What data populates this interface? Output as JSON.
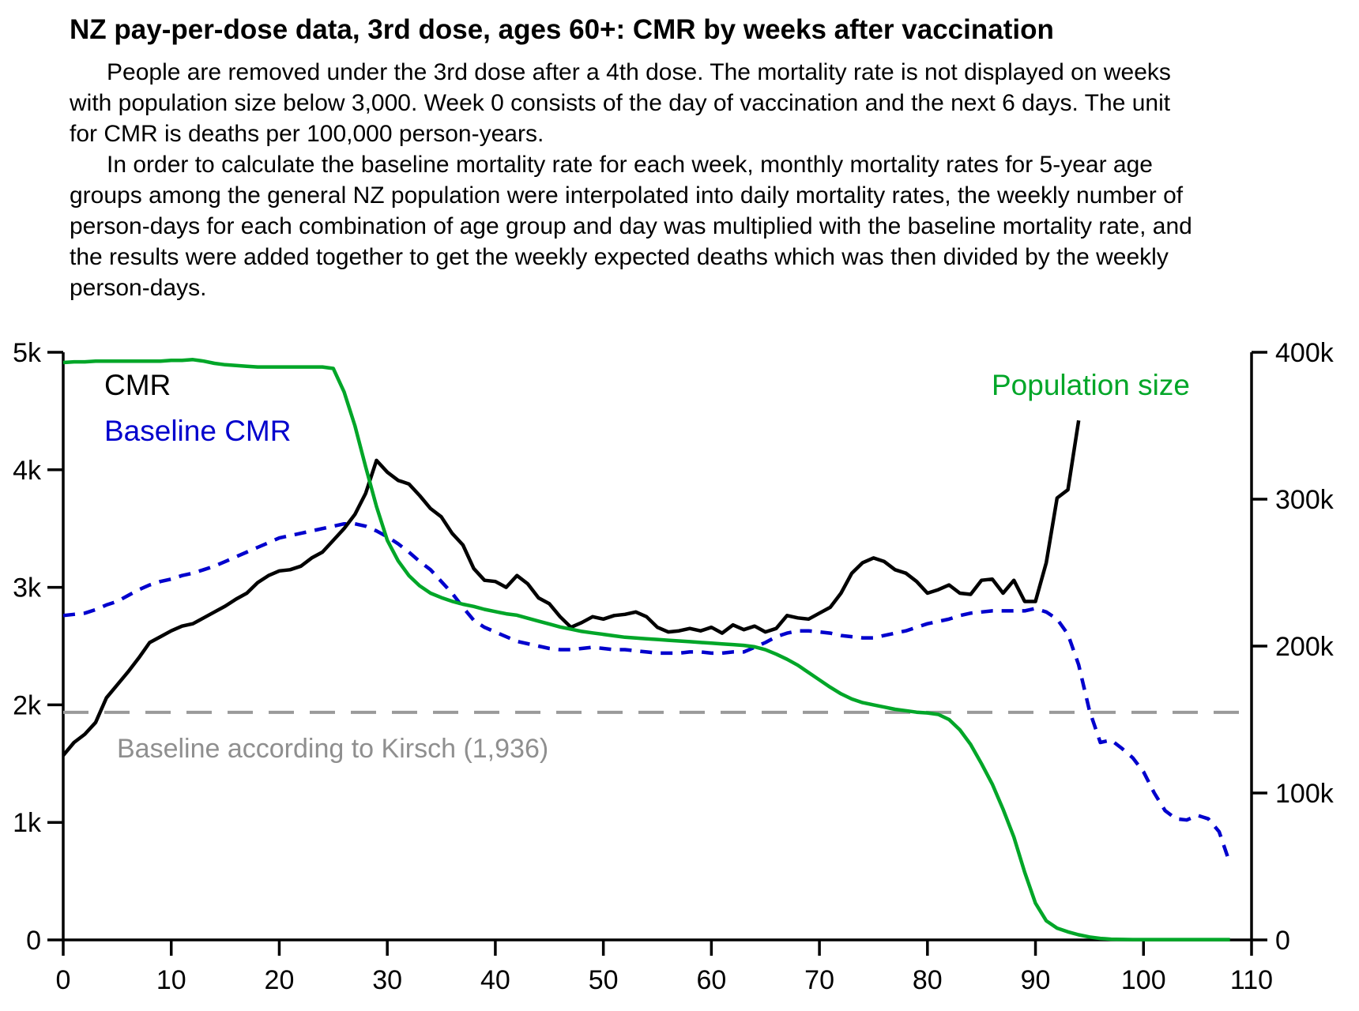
{
  "title": "NZ pay-per-dose data, 3rd dose, ages 60+: CMR by weeks after vaccination",
  "description": {
    "para1": "People are removed under the 3rd dose after a 4th dose. The mortality rate is not displayed on weeks with population size below 3,000. Week 0 consists of the day of vaccination and the next 6 days. The unit for CMR is deaths per 100,000 person-years.",
    "para2": "In order to calculate the baseline mortality rate for each week, monthly mortality rates for 5-year age groups among the general NZ population were interpolated into daily mortality rates, the weekly number of person-days for each combination of age group and day was multiplied with the baseline mortality rate, and the results were added together to get the weekly expected deaths which was then divided by the weekly person-days."
  },
  "chart_data": {
    "type": "line",
    "title": "NZ pay-per-dose data, 3rd dose, ages 60+: CMR by weeks after vaccination",
    "xlabel": "",
    "ylabel": "",
    "xlim": [
      0,
      110
    ],
    "grid": false,
    "x_ticks": [
      {
        "v": 0,
        "label": "0"
      },
      {
        "v": 10,
        "label": "10"
      },
      {
        "v": 20,
        "label": "20"
      },
      {
        "v": 30,
        "label": "30"
      },
      {
        "v": 40,
        "label": "40"
      },
      {
        "v": 50,
        "label": "50"
      },
      {
        "v": 60,
        "label": "60"
      },
      {
        "v": 70,
        "label": "70"
      },
      {
        "v": 80,
        "label": "80"
      },
      {
        "v": 90,
        "label": "90"
      },
      {
        "v": 100,
        "label": "100"
      },
      {
        "v": 110,
        "label": "110"
      }
    ],
    "left_axis": {
      "max": 5000,
      "ticks": [
        {
          "v": 0,
          "label": "0"
        },
        {
          "v": 1000,
          "label": "1k"
        },
        {
          "v": 2000,
          "label": "2k"
        },
        {
          "v": 3000,
          "label": "3k"
        },
        {
          "v": 4000,
          "label": "4k"
        },
        {
          "v": 5000,
          "label": "5k"
        }
      ]
    },
    "right_axis": {
      "max": 400000,
      "ticks": [
        {
          "v": 0,
          "label": "0"
        },
        {
          "v": 100000,
          "label": "100k"
        },
        {
          "v": 200000,
          "label": "200k"
        },
        {
          "v": 300000,
          "label": "300k"
        },
        {
          "v": 400000,
          "label": "400k"
        }
      ]
    },
    "legend": [
      {
        "label": "CMR",
        "color": "#000000"
      },
      {
        "label": "Baseline CMR",
        "color": "#0000cd"
      },
      {
        "label": "Population size",
        "color": "#00a628"
      }
    ],
    "baseline": {
      "label": "Baseline according to Kirsch (1,936)",
      "value": 1936,
      "line_color": "#9a9a9a",
      "label_color": "#8f8f8f"
    },
    "series": [
      {
        "name": "CMR",
        "axis": "left",
        "style": "solid",
        "color": "#000000",
        "z": 2,
        "x_start": 0,
        "x_step": 1,
        "values": [
          1570,
          1680,
          1750,
          1850,
          2060,
          2170,
          2280,
          2400,
          2530,
          2580,
          2630,
          2670,
          2690,
          2740,
          2790,
          2840,
          2900,
          2950,
          3040,
          3100,
          3140,
          3150,
          3180,
          3250,
          3300,
          3400,
          3500,
          3620,
          3800,
          4080,
          3980,
          3910,
          3880,
          3780,
          3670,
          3600,
          3460,
          3360,
          3160,
          3060,
          3050,
          3000,
          3100,
          3030,
          2910,
          2860,
          2750,
          2660,
          2700,
          2750,
          2730,
          2760,
          2770,
          2790,
          2750,
          2660,
          2620,
          2630,
          2650,
          2630,
          2660,
          2610,
          2680,
          2640,
          2670,
          2620,
          2650,
          2760,
          2740,
          2730,
          2780,
          2830,
          2950,
          3120,
          3210,
          3250,
          3220,
          3150,
          3120,
          3050,
          2950,
          2980,
          3020,
          2950,
          2940,
          3060,
          3070,
          2950,
          3060,
          2880,
          2880,
          3210,
          3760,
          3830,
          4420
        ]
      },
      {
        "name": "Baseline CMR",
        "axis": "left",
        "style": "dashed",
        "color": "#0000cd",
        "z": 1,
        "x_start": 0,
        "x_step": 1,
        "values": [
          2760,
          2770,
          2780,
          2810,
          2850,
          2880,
          2930,
          2980,
          3020,
          3050,
          3070,
          3100,
          3120,
          3150,
          3180,
          3220,
          3260,
          3300,
          3340,
          3380,
          3420,
          3440,
          3460,
          3480,
          3500,
          3520,
          3540,
          3540,
          3520,
          3480,
          3430,
          3370,
          3300,
          3220,
          3150,
          3050,
          2950,
          2830,
          2720,
          2660,
          2620,
          2580,
          2540,
          2520,
          2500,
          2480,
          2470,
          2470,
          2480,
          2490,
          2480,
          2470,
          2470,
          2460,
          2450,
          2440,
          2440,
          2440,
          2450,
          2450,
          2440,
          2440,
          2450,
          2450,
          2490,
          2530,
          2580,
          2610,
          2630,
          2630,
          2620,
          2610,
          2590,
          2580,
          2570,
          2570,
          2590,
          2610,
          2630,
          2660,
          2690,
          2710,
          2730,
          2760,
          2780,
          2790,
          2800,
          2800,
          2800,
          2800,
          2820,
          2790,
          2730,
          2600,
          2340,
          1950,
          1680,
          1700,
          1630,
          1550,
          1430,
          1250,
          1100,
          1030,
          1020,
          1060,
          1030,
          920,
          650
        ]
      },
      {
        "name": "Population size",
        "axis": "right",
        "style": "solid",
        "color": "#00a628",
        "z": 3,
        "x_start": 0,
        "x_step": 1,
        "values": [
          393000,
          393500,
          393500,
          394000,
          394000,
          394000,
          394000,
          394000,
          394000,
          394000,
          394500,
          394500,
          395000,
          394000,
          392500,
          391500,
          391000,
          390500,
          390000,
          390000,
          390000,
          390000,
          390000,
          390000,
          390000,
          389000,
          373000,
          350000,
          322000,
          295000,
          272000,
          258000,
          248000,
          241000,
          236000,
          233000,
          230500,
          228500,
          227000,
          225000,
          223500,
          222000,
          221000,
          219000,
          217000,
          215000,
          213000,
          211500,
          210000,
          209000,
          208000,
          207000,
          206000,
          205500,
          205000,
          204500,
          204000,
          203500,
          203000,
          202500,
          202000,
          201500,
          201000,
          200500,
          199500,
          197500,
          194500,
          191000,
          187000,
          182000,
          177000,
          172000,
          167500,
          164000,
          161500,
          160000,
          158500,
          157000,
          156000,
          155000,
          154500,
          153500,
          150000,
          143000,
          133000,
          120000,
          106000,
          89000,
          70000,
          46000,
          25000,
          13000,
          8000,
          5500,
          3500,
          2000,
          1000,
          500,
          300,
          200,
          200,
          200,
          200,
          200,
          200,
          200,
          200,
          200,
          200
        ]
      }
    ]
  }
}
